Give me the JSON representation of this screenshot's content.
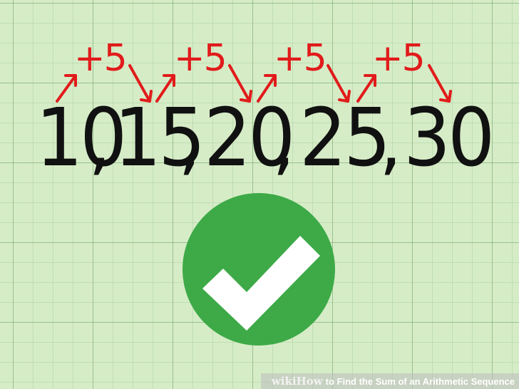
{
  "sequence": {
    "terms": [
      "10",
      "15",
      "20",
      "25",
      "30"
    ],
    "separator": ",",
    "difference_label": "+5"
  },
  "colors": {
    "background": "#d6ecc7",
    "grid": "#78aa6e",
    "numbers": "#111111",
    "annotations": "#e11b1b",
    "check_circle": "#3daa47",
    "check_mark": "#ffffff"
  },
  "icons": {
    "badge": "check-circle-icon",
    "step_arrows": "arrow-up-right-icon / arrow-down-right-icon"
  },
  "banner": {
    "wiki": "wiki",
    "how": "How",
    "title": "to Find the Sum of an Arithmetic Sequence"
  }
}
